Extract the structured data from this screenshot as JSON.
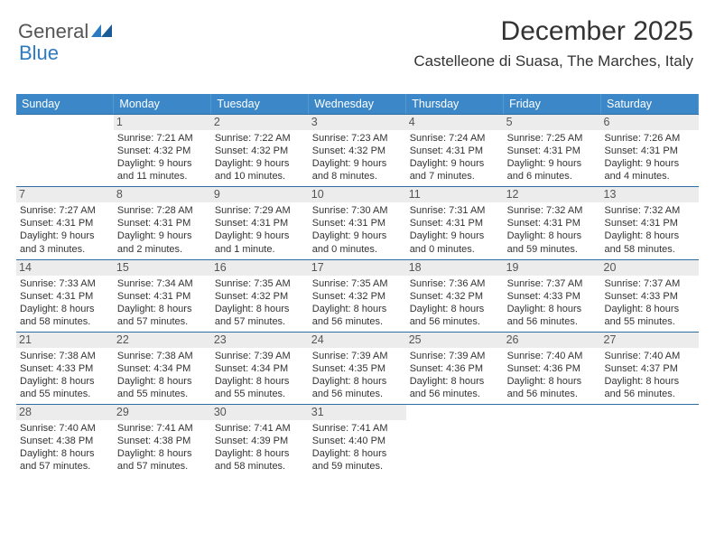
{
  "logo": {
    "part1": "General",
    "part2": "Blue"
  },
  "title": "December 2025",
  "location": "Castelleone di Suasa, The Marches, Italy",
  "colors": {
    "header_bg": "#3b87c8",
    "header_fg": "#ffffff",
    "rule": "#2f6ea5",
    "daynum_bg": "#ececec"
  },
  "weekdays": [
    "Sunday",
    "Monday",
    "Tuesday",
    "Wednesday",
    "Thursday",
    "Friday",
    "Saturday"
  ],
  "first_day_offset": 1,
  "days": [
    {
      "n": 1,
      "sr": "7:21 AM",
      "ss": "4:32 PM",
      "dl": "9 hours and 11 minutes."
    },
    {
      "n": 2,
      "sr": "7:22 AM",
      "ss": "4:32 PM",
      "dl": "9 hours and 10 minutes."
    },
    {
      "n": 3,
      "sr": "7:23 AM",
      "ss": "4:32 PM",
      "dl": "9 hours and 8 minutes."
    },
    {
      "n": 4,
      "sr": "7:24 AM",
      "ss": "4:31 PM",
      "dl": "9 hours and 7 minutes."
    },
    {
      "n": 5,
      "sr": "7:25 AM",
      "ss": "4:31 PM",
      "dl": "9 hours and 6 minutes."
    },
    {
      "n": 6,
      "sr": "7:26 AM",
      "ss": "4:31 PM",
      "dl": "9 hours and 4 minutes."
    },
    {
      "n": 7,
      "sr": "7:27 AM",
      "ss": "4:31 PM",
      "dl": "9 hours and 3 minutes."
    },
    {
      "n": 8,
      "sr": "7:28 AM",
      "ss": "4:31 PM",
      "dl": "9 hours and 2 minutes."
    },
    {
      "n": 9,
      "sr": "7:29 AM",
      "ss": "4:31 PM",
      "dl": "9 hours and 1 minute."
    },
    {
      "n": 10,
      "sr": "7:30 AM",
      "ss": "4:31 PM",
      "dl": "9 hours and 0 minutes."
    },
    {
      "n": 11,
      "sr": "7:31 AM",
      "ss": "4:31 PM",
      "dl": "9 hours and 0 minutes."
    },
    {
      "n": 12,
      "sr": "7:32 AM",
      "ss": "4:31 PM",
      "dl": "8 hours and 59 minutes."
    },
    {
      "n": 13,
      "sr": "7:32 AM",
      "ss": "4:31 PM",
      "dl": "8 hours and 58 minutes."
    },
    {
      "n": 14,
      "sr": "7:33 AM",
      "ss": "4:31 PM",
      "dl": "8 hours and 58 minutes."
    },
    {
      "n": 15,
      "sr": "7:34 AM",
      "ss": "4:31 PM",
      "dl": "8 hours and 57 minutes."
    },
    {
      "n": 16,
      "sr": "7:35 AM",
      "ss": "4:32 PM",
      "dl": "8 hours and 57 minutes."
    },
    {
      "n": 17,
      "sr": "7:35 AM",
      "ss": "4:32 PM",
      "dl": "8 hours and 56 minutes."
    },
    {
      "n": 18,
      "sr": "7:36 AM",
      "ss": "4:32 PM",
      "dl": "8 hours and 56 minutes."
    },
    {
      "n": 19,
      "sr": "7:37 AM",
      "ss": "4:33 PM",
      "dl": "8 hours and 56 minutes."
    },
    {
      "n": 20,
      "sr": "7:37 AM",
      "ss": "4:33 PM",
      "dl": "8 hours and 55 minutes."
    },
    {
      "n": 21,
      "sr": "7:38 AM",
      "ss": "4:33 PM",
      "dl": "8 hours and 55 minutes."
    },
    {
      "n": 22,
      "sr": "7:38 AM",
      "ss": "4:34 PM",
      "dl": "8 hours and 55 minutes."
    },
    {
      "n": 23,
      "sr": "7:39 AM",
      "ss": "4:34 PM",
      "dl": "8 hours and 55 minutes."
    },
    {
      "n": 24,
      "sr": "7:39 AM",
      "ss": "4:35 PM",
      "dl": "8 hours and 56 minutes."
    },
    {
      "n": 25,
      "sr": "7:39 AM",
      "ss": "4:36 PM",
      "dl": "8 hours and 56 minutes."
    },
    {
      "n": 26,
      "sr": "7:40 AM",
      "ss": "4:36 PM",
      "dl": "8 hours and 56 minutes."
    },
    {
      "n": 27,
      "sr": "7:40 AM",
      "ss": "4:37 PM",
      "dl": "8 hours and 56 minutes."
    },
    {
      "n": 28,
      "sr": "7:40 AM",
      "ss": "4:38 PM",
      "dl": "8 hours and 57 minutes."
    },
    {
      "n": 29,
      "sr": "7:41 AM",
      "ss": "4:38 PM",
      "dl": "8 hours and 57 minutes."
    },
    {
      "n": 30,
      "sr": "7:41 AM",
      "ss": "4:39 PM",
      "dl": "8 hours and 58 minutes."
    },
    {
      "n": 31,
      "sr": "7:41 AM",
      "ss": "4:40 PM",
      "dl": "8 hours and 59 minutes."
    }
  ],
  "labels": {
    "sunrise": "Sunrise:",
    "sunset": "Sunset:",
    "daylight": "Daylight:"
  }
}
